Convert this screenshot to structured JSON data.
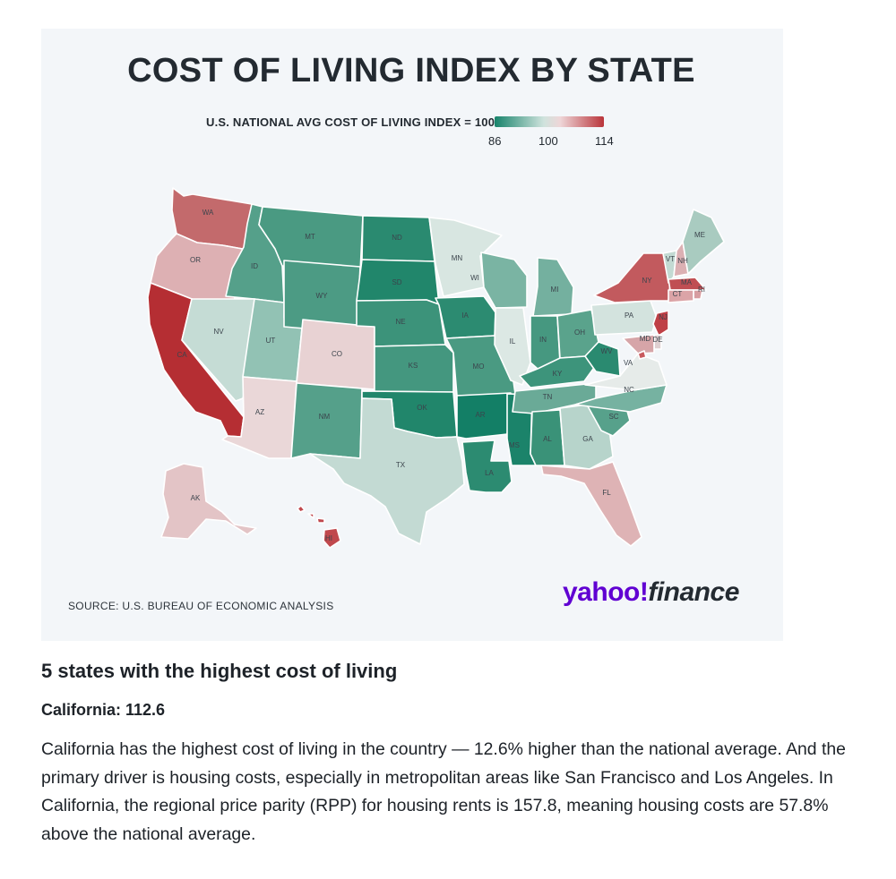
{
  "map": {
    "title": "COST OF LIVING INDEX BY STATE",
    "legend": {
      "label": "U.S. NATIONAL AVG COST OF LIVING INDEX = 100",
      "min": "86",
      "mid": "100",
      "max": "114",
      "colors": {
        "low": "#17836b",
        "mid": "#cfe3dd",
        "high": "#b9343a"
      }
    },
    "source": "SOURCE: U.S. BUREAU OF ECONOMIC ANALYSIS",
    "logo": {
      "part1": "yahoo!",
      "part2": "finance"
    },
    "states": [
      {
        "abbr": "WA",
        "color": "#c36a6c"
      },
      {
        "abbr": "OR",
        "color": "#ddb0b3"
      },
      {
        "abbr": "CA",
        "color": "#b52e33"
      },
      {
        "abbr": "ID",
        "color": "#55a08a"
      },
      {
        "abbr": "NV",
        "color": "#c5dcd5"
      },
      {
        "abbr": "UT",
        "color": "#92c2b4"
      },
      {
        "abbr": "AZ",
        "color": "#ead7d8"
      },
      {
        "abbr": "MT",
        "color": "#4a9a82"
      },
      {
        "abbr": "WY",
        "color": "#4c9b84"
      },
      {
        "abbr": "CO",
        "color": "#e8d2d3"
      },
      {
        "abbr": "NM",
        "color": "#55a08a"
      },
      {
        "abbr": "ND",
        "color": "#2a8a70"
      },
      {
        "abbr": "SD",
        "color": "#21866b"
      },
      {
        "abbr": "NE",
        "color": "#3c937a"
      },
      {
        "abbr": "KS",
        "color": "#44977f"
      },
      {
        "abbr": "OK",
        "color": "#21866b"
      },
      {
        "abbr": "TX",
        "color": "#c3dad3"
      },
      {
        "abbr": "MN",
        "color": "#d8e6e1"
      },
      {
        "abbr": "IA",
        "color": "#2c8b71"
      },
      {
        "abbr": "MO",
        "color": "#4a9a82"
      },
      {
        "abbr": "AR",
        "color": "#137f66"
      },
      {
        "abbr": "LA",
        "color": "#2c8b71"
      },
      {
        "abbr": "WI",
        "color": "#7ab4a3"
      },
      {
        "abbr": "IL",
        "color": "#dce8e4"
      },
      {
        "abbr": "MS",
        "color": "#1b836a"
      },
      {
        "abbr": "MI",
        "color": "#74b09f"
      },
      {
        "abbr": "IN",
        "color": "#469880"
      },
      {
        "abbr": "OH",
        "color": "#5aa38c"
      },
      {
        "abbr": "KY",
        "color": "#3d947b"
      },
      {
        "abbr": "TN",
        "color": "#6aaa97"
      },
      {
        "abbr": "AL",
        "color": "#3a9278"
      },
      {
        "abbr": "GA",
        "color": "#b7d4cb"
      },
      {
        "abbr": "FL",
        "color": "#deb3b5"
      },
      {
        "abbr": "SC",
        "color": "#57a18b"
      },
      {
        "abbr": "NC",
        "color": "#76b2a1"
      },
      {
        "abbr": "VA",
        "color": "#e6ebe9"
      },
      {
        "abbr": "WV",
        "color": "#2a8a70"
      },
      {
        "abbr": "PA",
        "color": "#d3e3de"
      },
      {
        "abbr": "NY",
        "color": "#c25a5e"
      },
      {
        "abbr": "VT",
        "color": "#c3dad3"
      },
      {
        "abbr": "NH",
        "color": "#dbb0b3"
      },
      {
        "abbr": "ME",
        "color": "#a9cbc0"
      },
      {
        "abbr": "MA",
        "color": "#c04e53"
      },
      {
        "abbr": "RI",
        "color": "#d79da0"
      },
      {
        "abbr": "CT",
        "color": "#dba4a7"
      },
      {
        "abbr": "NJ",
        "color": "#bf4046"
      },
      {
        "abbr": "DE",
        "color": "#dfd0d1"
      },
      {
        "abbr": "MD",
        "color": "#d6a5a8"
      },
      {
        "abbr": "DC",
        "color": "#c85a5e"
      },
      {
        "abbr": "AK",
        "color": "#e3c4c6"
      },
      {
        "abbr": "HI",
        "color": "#c0484d"
      }
    ]
  },
  "article": {
    "heading": "5 states with the highest cost of living",
    "subheading": "California: 112.6",
    "paragraph": "California has the highest cost of living in the country — 12.6% higher than the national average. And the primary driver is housing costs, especially in metropolitan areas like San Francisco and Los Angeles. In California, the regional price parity (RPP) for housing rents is 157.8, meaning housing costs are 57.8% above the national average."
  }
}
